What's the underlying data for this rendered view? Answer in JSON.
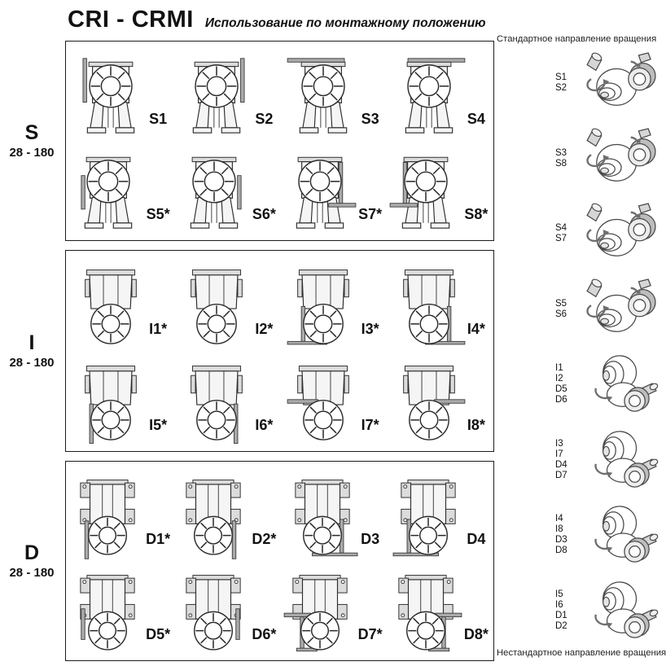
{
  "title": "CRI - CRMI",
  "subtitle": "Использование по монтажному положению",
  "right_panel": {
    "header": "Стандартное направление вращения",
    "footer": "Нестандартное направление вращения",
    "groups": [
      {
        "positions": [
          "S1",
          "S2"
        ],
        "view": "output-right"
      },
      {
        "positions": [
          "S3",
          "S8"
        ],
        "view": "output-right"
      },
      {
        "positions": [
          "S4",
          "S7"
        ],
        "view": "output-right"
      },
      {
        "positions": [
          "S5",
          "S6"
        ],
        "view": "output-right"
      },
      {
        "positions": [
          "I1",
          "I2",
          "D5",
          "D6"
        ],
        "view": "output-bottom"
      },
      {
        "positions": [
          "I3",
          "I7",
          "D4",
          "D7"
        ],
        "view": "output-bottom"
      },
      {
        "positions": [
          "I4",
          "I8",
          "D3",
          "D8"
        ],
        "view": "output-bottom"
      },
      {
        "positions": [
          "I5",
          "I6",
          "D1",
          "D2"
        ],
        "view": "output-bottom"
      }
    ]
  },
  "sections": [
    {
      "id": "S",
      "label": "S",
      "range": "28 - 180",
      "glyph": "S",
      "items": [
        {
          "label": "S1",
          "mount": "wall-left"
        },
        {
          "label": "S2",
          "mount": "wall-right"
        },
        {
          "label": "S3",
          "mount": "ceiling-left"
        },
        {
          "label": "S4",
          "mount": "ceiling-right"
        },
        {
          "label": "S5*",
          "mount": "wall-left-low"
        },
        {
          "label": "S6*",
          "mount": "wall-right-low"
        },
        {
          "label": "S7*",
          "mount": "shelf-right"
        },
        {
          "label": "S8*",
          "mount": "shelf-left"
        }
      ]
    },
    {
      "id": "I",
      "label": "I",
      "range": "28 - 180",
      "glyph": "I",
      "items": [
        {
          "label": "I1*",
          "mount": "none"
        },
        {
          "label": "I2*",
          "mount": "none"
        },
        {
          "label": "I3*",
          "mount": "floor-left"
        },
        {
          "label": "I4*",
          "mount": "floor-right"
        },
        {
          "label": "I5*",
          "mount": "rod-left"
        },
        {
          "label": "I6*",
          "mount": "rod-right"
        },
        {
          "label": "I7*",
          "mount": "shelf-left"
        },
        {
          "label": "I8*",
          "mount": "shelf-right"
        }
      ]
    },
    {
      "id": "D",
      "label": "D",
      "range": "28 - 180",
      "glyph": "D",
      "items": [
        {
          "label": "D1*",
          "mount": "rod-left"
        },
        {
          "label": "D2*",
          "mount": "rod-right"
        },
        {
          "label": "D3",
          "mount": "floor-bracket-right"
        },
        {
          "label": "D4",
          "mount": "floor-bracket-left"
        },
        {
          "label": "D5*",
          "mount": "wall-left-low"
        },
        {
          "label": "D6*",
          "mount": "wall-right-low"
        },
        {
          "label": "D7*",
          "mount": "shelf-left-bracket"
        },
        {
          "label": "D8*",
          "mount": "shelf-right-bracket"
        }
      ]
    }
  ],
  "colors": {
    "text": "#111111",
    "line": "#2a2a2a",
    "plate": "#aaaaaa",
    "metal_light": "#dcdcdc"
  }
}
